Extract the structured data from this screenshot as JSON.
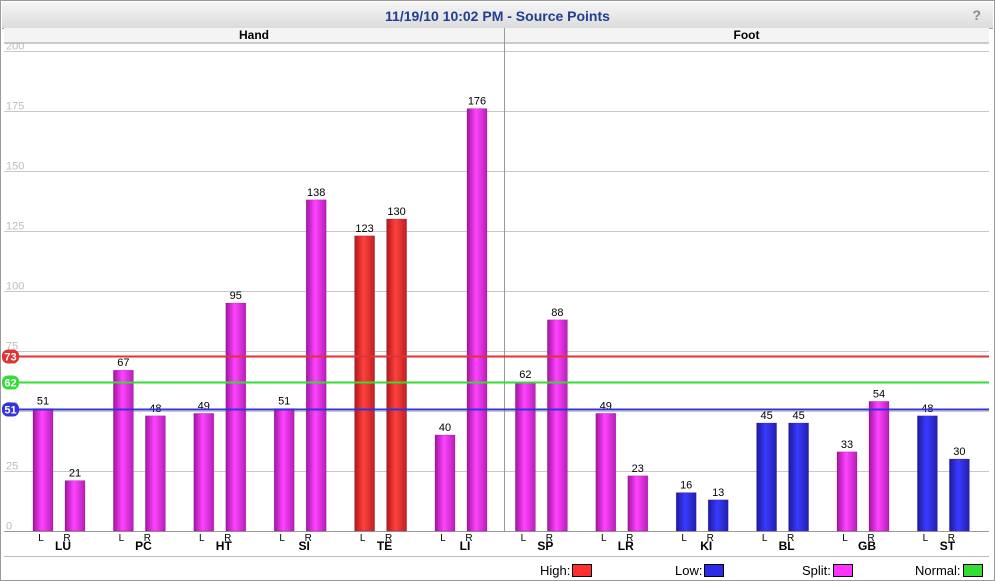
{
  "title": "11/19/10 10:02 PM - Source Points",
  "help_label": "?",
  "colors": {
    "high": "#ff2f2f",
    "low": "#2b2be8",
    "split": "#ff33ff",
    "normal": "#33dd33",
    "high_line": "#e23333",
    "normal_line": "#33dd33",
    "low_line": "#3333dd"
  },
  "chart_data": {
    "type": "bar",
    "ylim": [
      0,
      200
    ],
    "yticks": [
      0,
      25,
      50,
      75,
      100,
      125,
      150,
      175,
      200
    ],
    "sections": [
      "Hand",
      "Foot"
    ],
    "groups": [
      {
        "name": "LU",
        "section": "Hand",
        "bars": [
          {
            "side": "L",
            "value": 51,
            "status": "split"
          },
          {
            "side": "R",
            "value": 21,
            "status": "split"
          }
        ]
      },
      {
        "name": "PC",
        "section": "Hand",
        "bars": [
          {
            "side": "L",
            "value": 67,
            "status": "split"
          },
          {
            "side": "R",
            "value": 48,
            "status": "split"
          }
        ]
      },
      {
        "name": "HT",
        "section": "Hand",
        "bars": [
          {
            "side": "L",
            "value": 49,
            "status": "split"
          },
          {
            "side": "R",
            "value": 95,
            "status": "split"
          }
        ]
      },
      {
        "name": "SI",
        "section": "Hand",
        "bars": [
          {
            "side": "L",
            "value": 51,
            "status": "split"
          },
          {
            "side": "R",
            "value": 138,
            "status": "split"
          }
        ]
      },
      {
        "name": "TE",
        "section": "Hand",
        "bars": [
          {
            "side": "L",
            "value": 123,
            "status": "high"
          },
          {
            "side": "R",
            "value": 130,
            "status": "high"
          }
        ]
      },
      {
        "name": "LI",
        "section": "Hand",
        "bars": [
          {
            "side": "L",
            "value": 40,
            "status": "split"
          },
          {
            "side": "R",
            "value": 176,
            "status": "split"
          }
        ]
      },
      {
        "name": "SP",
        "section": "Foot",
        "bars": [
          {
            "side": "L",
            "value": 62,
            "status": "split"
          },
          {
            "side": "R",
            "value": 88,
            "status": "split"
          }
        ]
      },
      {
        "name": "LR",
        "section": "Foot",
        "bars": [
          {
            "side": "L",
            "value": 49,
            "status": "split"
          },
          {
            "side": "R",
            "value": 23,
            "status": "split"
          }
        ]
      },
      {
        "name": "KI",
        "section": "Foot",
        "bars": [
          {
            "side": "L",
            "value": 16,
            "status": "low"
          },
          {
            "side": "R",
            "value": 13,
            "status": "low"
          }
        ]
      },
      {
        "name": "BL",
        "section": "Foot",
        "bars": [
          {
            "side": "L",
            "value": 45,
            "status": "low"
          },
          {
            "side": "R",
            "value": 45,
            "status": "low"
          }
        ]
      },
      {
        "name": "GB",
        "section": "Foot",
        "bars": [
          {
            "side": "L",
            "value": 33,
            "status": "split"
          },
          {
            "side": "R",
            "value": 54,
            "status": "split"
          }
        ]
      },
      {
        "name": "ST",
        "section": "Foot",
        "bars": [
          {
            "side": "L",
            "value": 48,
            "status": "low"
          },
          {
            "side": "R",
            "value": 30,
            "status": "low"
          }
        ]
      }
    ],
    "reference_lines": [
      {
        "label": "73",
        "value": 73,
        "kind": "high"
      },
      {
        "label": "62",
        "value": 62,
        "kind": "normal"
      },
      {
        "label": "51",
        "value": 51,
        "kind": "low"
      }
    ],
    "grid": true
  },
  "legend": [
    {
      "label": "High:",
      "kind": "high"
    },
    {
      "label": "Low:",
      "kind": "low"
    },
    {
      "label": "Split:",
      "kind": "split"
    },
    {
      "label": "Normal:",
      "kind": "normal"
    }
  ]
}
